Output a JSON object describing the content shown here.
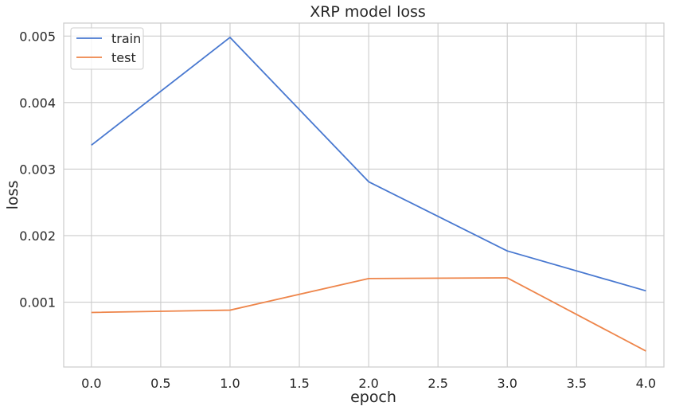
{
  "chart_data": {
    "type": "line",
    "title": "XRP model loss",
    "xlabel": "epoch",
    "ylabel": "loss",
    "x": [
      0,
      1,
      2,
      3,
      4
    ],
    "series": [
      {
        "name": "train",
        "values": [
          0.00336,
          0.00498,
          0.00281,
          0.00177,
          0.00117
        ],
        "color": "#4878d0"
      },
      {
        "name": "test",
        "values": [
          0.000845,
          0.00088,
          0.001355,
          0.001365,
          0.000265
        ],
        "color": "#ee854a"
      }
    ],
    "xlim": [
      -0.2,
      4.13
    ],
    "ylim": [
      2.5e-05,
      0.005195
    ],
    "xticks": [
      0.0,
      0.5,
      1.0,
      1.5,
      2.0,
      2.5,
      3.0,
      3.5,
      4.0
    ],
    "xtick_labels": [
      "0.0",
      "0.5",
      "1.0",
      "1.5",
      "2.0",
      "2.5",
      "3.0",
      "3.5",
      "4.0"
    ],
    "yticks": [
      0.001,
      0.002,
      0.003,
      0.004,
      0.005
    ],
    "ytick_labels": [
      "0.001",
      "0.002",
      "0.003",
      "0.004",
      "0.005"
    ],
    "grid": true,
    "legend_position": "top-left",
    "colors": {
      "grid": "#cccccc",
      "axes_edge": "#cccccc",
      "text": "#262626"
    }
  }
}
